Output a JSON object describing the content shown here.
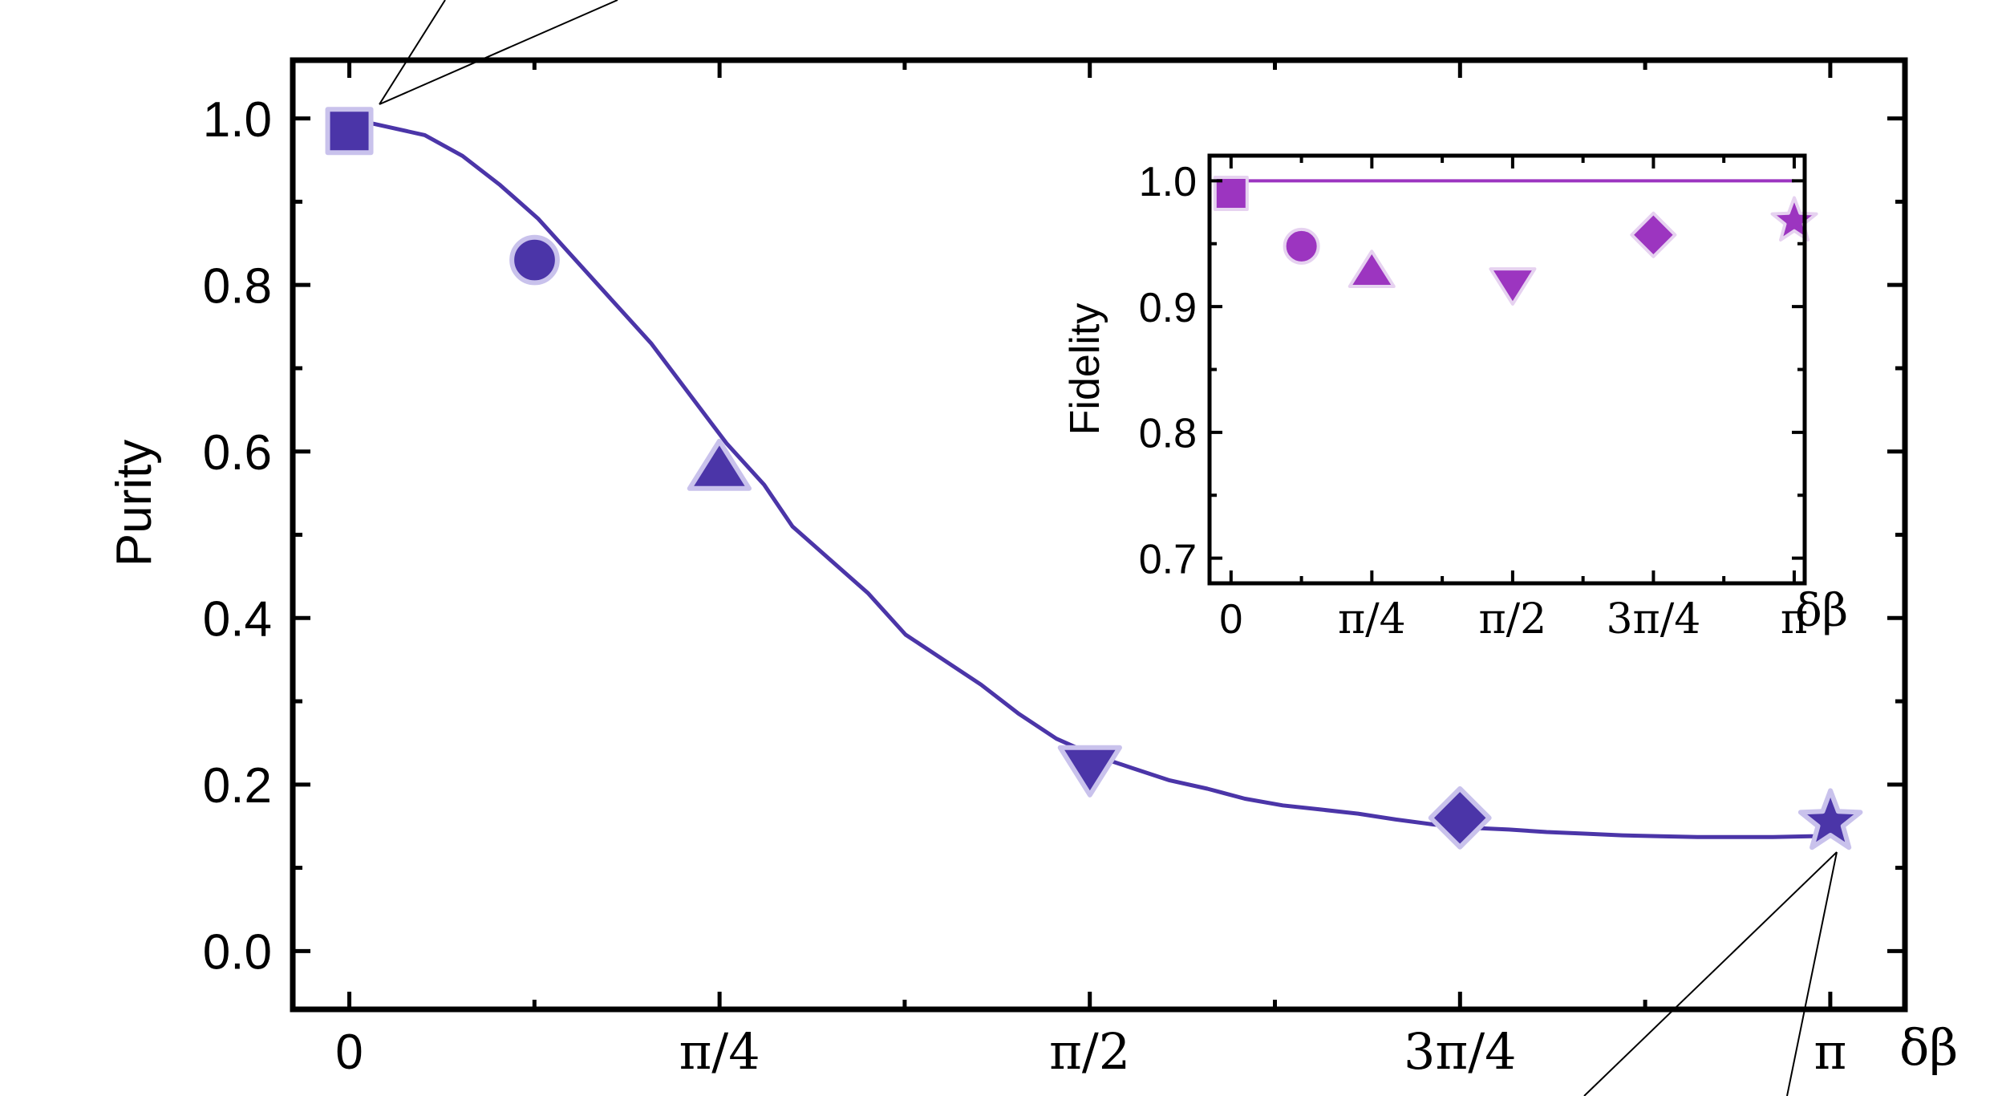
{
  "colors": {
    "main_series": "#4b35a8",
    "main_marker_edge": "#c9c2ec",
    "inset_series": "#9c35c0",
    "inset_marker_edge": "#e6d2f0",
    "axis": "#000000"
  },
  "chart_data": [
    {
      "type": "scatter",
      "role": "main",
      "title": "",
      "xlabel": "δβ",
      "ylabel": "Purity",
      "xlim": [
        -0.12,
        3.3
      ],
      "ylim": [
        -0.07,
        1.07
      ],
      "x_tick_values": [
        0,
        0.785398,
        1.570796,
        2.356194,
        3.141593
      ],
      "x_tick_labels": [
        "0",
        "π/4",
        "π/2",
        "3π/4",
        "π"
      ],
      "y_tick_values": [
        0.0,
        0.2,
        0.4,
        0.6,
        0.8,
        1.0
      ],
      "y_tick_labels": [
        "0.0",
        "0.2",
        "0.4",
        "0.6",
        "0.8",
        "1.0"
      ],
      "grid": false,
      "series": [
        {
          "type": "scatter",
          "x": [
            0,
            0.393,
            0.785,
            1.571,
            2.356,
            3.142
          ],
          "y": [
            0.985,
            0.83,
            0.58,
            0.22,
            0.16,
            0.155
          ],
          "markers": [
            "square",
            "circle",
            "triangle-up",
            "triangle-down",
            "diamond",
            "star"
          ]
        },
        {
          "type": "line",
          "x": [
            0.0,
            0.16,
            0.24,
            0.32,
            0.4,
            0.48,
            0.56,
            0.64,
            0.72,
            0.8,
            0.88,
            0.94,
            1.02,
            1.1,
            1.18,
            1.26,
            1.34,
            1.42,
            1.5,
            1.58,
            1.66,
            1.74,
            1.82,
            1.9,
            1.98,
            2.06,
            2.14,
            2.22,
            2.3,
            2.38,
            2.46,
            2.54,
            2.62,
            2.7,
            2.78,
            2.86,
            2.94,
            3.02,
            3.1,
            3.142
          ],
          "y": [
            1.0,
            0.98,
            0.955,
            0.92,
            0.88,
            0.83,
            0.78,
            0.73,
            0.67,
            0.61,
            0.56,
            0.51,
            0.47,
            0.43,
            0.38,
            0.35,
            0.32,
            0.285,
            0.255,
            0.235,
            0.22,
            0.205,
            0.195,
            0.183,
            0.175,
            0.17,
            0.165,
            0.158,
            0.152,
            0.148,
            0.146,
            0.143,
            0.141,
            0.139,
            0.138,
            0.137,
            0.137,
            0.137,
            0.138,
            0.138
          ]
        }
      ]
    },
    {
      "type": "scatter",
      "role": "inset",
      "title": "",
      "xlabel": "δβ",
      "ylabel": "Fidelity",
      "xlim": [
        -0.12,
        3.2
      ],
      "ylim": [
        0.68,
        1.02
      ],
      "x_tick_values": [
        0,
        0.785398,
        1.570796,
        2.356194,
        3.141593
      ],
      "x_tick_labels": [
        "0",
        "π/4",
        "π/2",
        "3π/4",
        "π"
      ],
      "y_tick_values": [
        0.7,
        0.8,
        0.9,
        1.0
      ],
      "y_tick_labels": [
        "0.7",
        "0.8",
        "0.9",
        "1.0"
      ],
      "grid": false,
      "series": [
        {
          "type": "scatter",
          "x": [
            0,
            0.393,
            0.785,
            1.571,
            2.356,
            3.142
          ],
          "y": [
            0.99,
            0.948,
            0.928,
            0.918,
            0.957,
            0.968
          ],
          "markers": [
            "square",
            "circle",
            "triangle-up",
            "triangle-down",
            "diamond",
            "star"
          ]
        },
        {
          "type": "line",
          "x": [
            0,
            3.142
          ],
          "y": [
            1.0,
            1.0
          ]
        }
      ]
    }
  ]
}
